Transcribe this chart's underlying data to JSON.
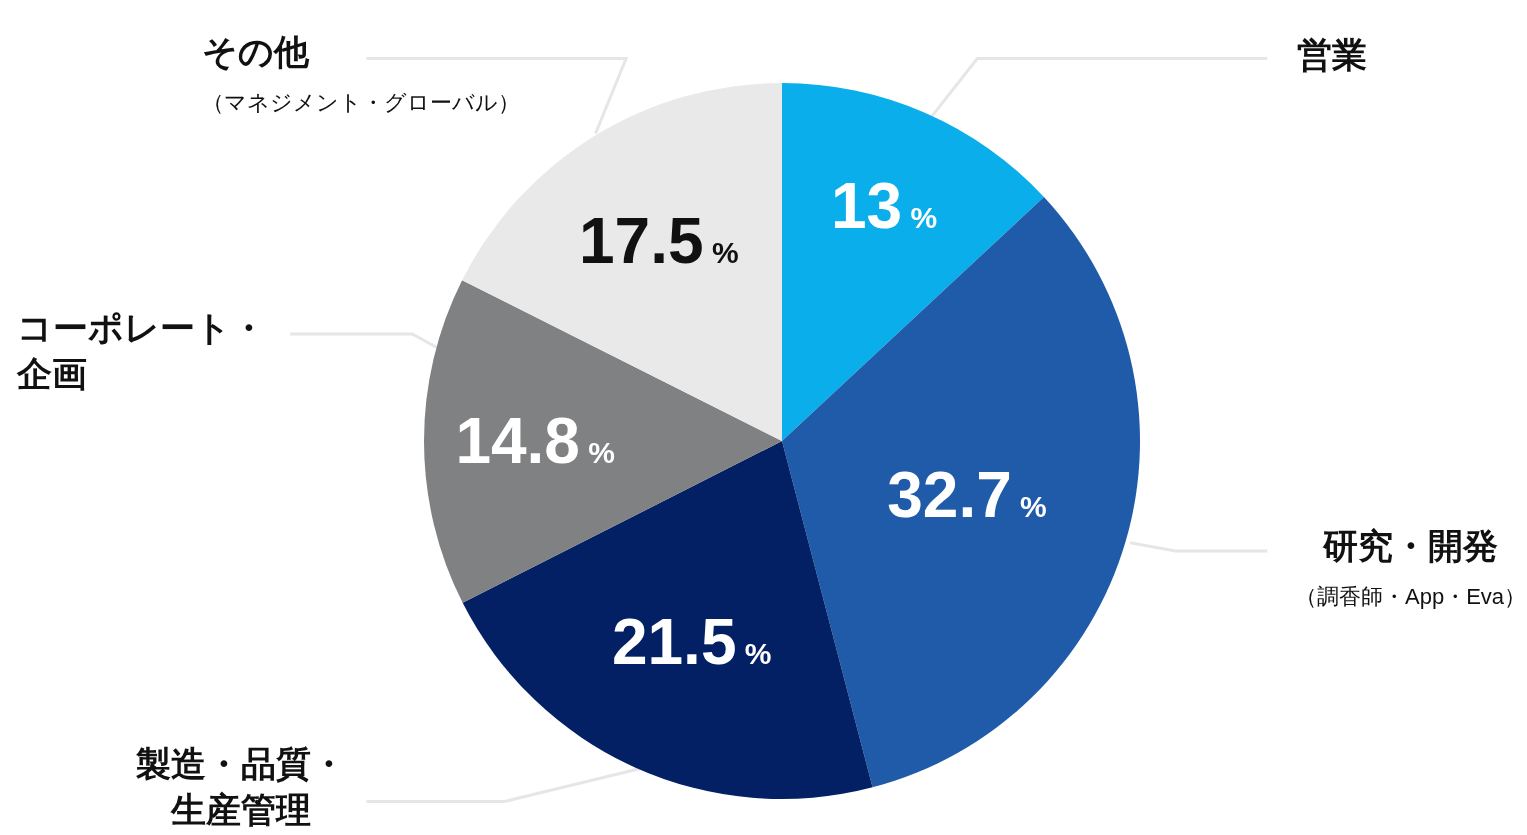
{
  "chart_data": {
    "type": "pie",
    "categories": [
      "営業",
      "研究・開発（調香師・App・Eva）",
      "製造・品質・生産管理",
      "コーポレート・企画",
      "その他（マネジメント・グローバル）"
    ],
    "values": [
      13,
      32.7,
      21.5,
      14.8,
      17.5
    ],
    "colors": [
      "#09aeeb",
      "#1f5ba8",
      "#032064",
      "#808183",
      "#e9e9e9"
    ],
    "value_labels": [
      "13%",
      "32.7%",
      "21.5%",
      "14.8%",
      "17.5%"
    ]
  }
}
